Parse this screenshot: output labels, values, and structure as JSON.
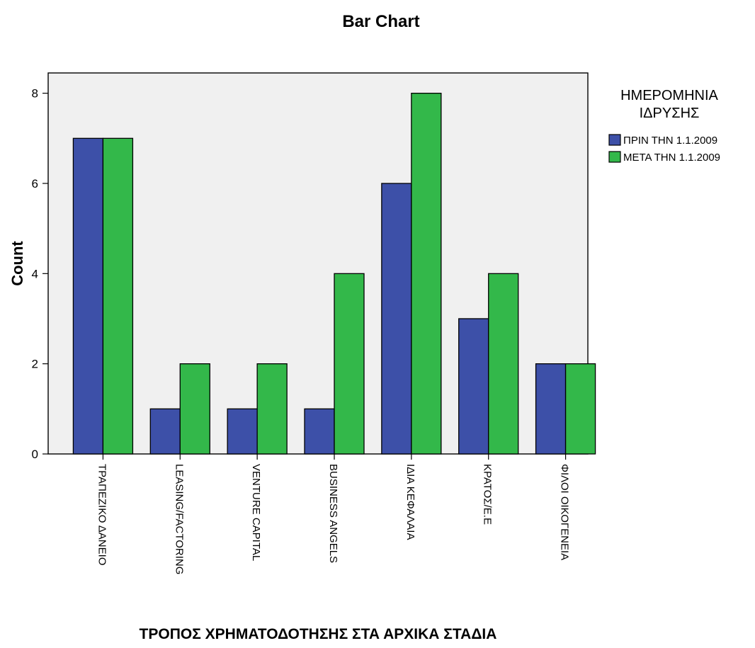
{
  "chart_data": {
    "type": "bar",
    "title": "Bar Chart",
    "xlabel": "ΤΡΟΠΟΣ ΧΡΗΜΑΤΟΔΟΤΗΣΗΣ ΣΤΑ ΑΡΧΙΚΑ ΣΤΑΔΙΑ",
    "ylabel": "Count",
    "ylim": [
      0,
      8.45
    ],
    "yticks": [
      0,
      2,
      4,
      6,
      8
    ],
    "grid": false,
    "legend_position": "right",
    "legend_title": [
      "ΗΜΕΡΟΜΗΝΙΑ",
      "ΙΔΡΥΣΗΣ"
    ],
    "categories": [
      "ΤΡΑΠΕΖΙΚΟ ΔΑΝΕΙΟ",
      "LEASING/FACTORING",
      "VENTURE CAPITAL",
      "BUSINESS ANGELS",
      "ΙΔΙΑ ΚΕΦΑΛΑΙΑ",
      "ΚΡΑΤΟΣ/Ε.Ε",
      "ΦΙΛΟΙ ΟΙΚΟΓΕΝΕΙΑ"
    ],
    "series": [
      {
        "name": "ΠΡΙΝ ΤΗΝ 1.1.2009",
        "color": "#3d50a8",
        "values": [
          7,
          1,
          1,
          1,
          6,
          3,
          2
        ]
      },
      {
        "name": "ΜΕΤΑ ΤΗΝ 1.1.2009",
        "color": "#33b84a",
        "values": [
          7,
          2,
          2,
          4,
          8,
          4,
          2
        ]
      }
    ],
    "plot_background": "#f0f0f0"
  }
}
